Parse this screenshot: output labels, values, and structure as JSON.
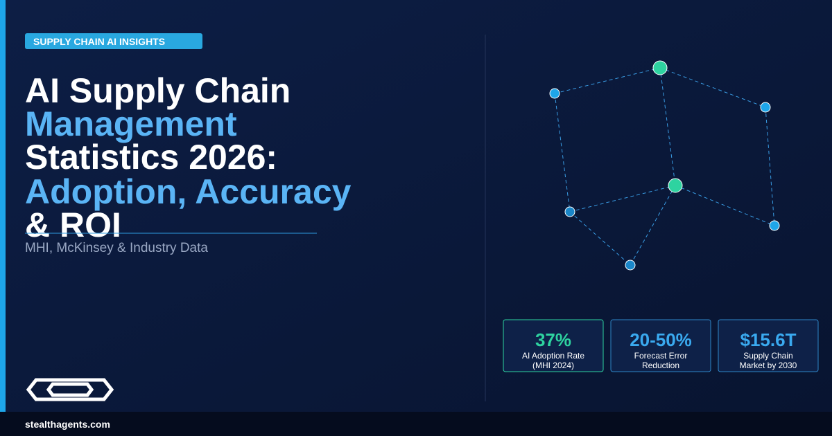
{
  "badge": "SUPPLY CHAIN AI INSIGHTS",
  "title": {
    "lines": [
      "AI Supply Chain",
      "Management",
      "Statistics 2026:",
      "Adoption, Accuracy",
      "& ROI"
    ]
  },
  "subtitle": "MHI, McKinsey & Industry Data",
  "stats": [
    {
      "value": "37%",
      "label": [
        "AI Adoption Rate",
        "(MHI 2024)"
      ]
    },
    {
      "value": "20-50%",
      "label": [
        "Forecast Error",
        "Reduction"
      ]
    },
    {
      "value": "$15.6T",
      "label": [
        "Supply Chain",
        "Market by 2030"
      ]
    }
  ],
  "footer": "stealthagents.com"
}
